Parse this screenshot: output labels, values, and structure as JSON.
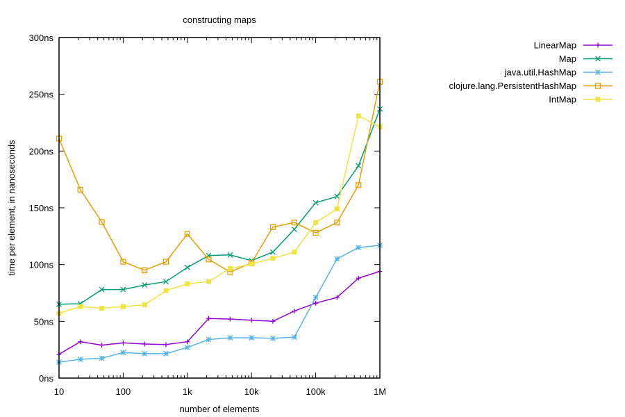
{
  "chart_data": {
    "type": "line",
    "title": "constructing maps",
    "xlabel": "number of elements",
    "ylabel": "time per element, in nanoseconds",
    "xscale": "log",
    "xlim": [
      10,
      1000000
    ],
    "ylim": [
      0,
      300
    ],
    "x_ticks": [
      {
        "value": 10,
        "label": "10"
      },
      {
        "value": 100,
        "label": "100"
      },
      {
        "value": 1000,
        "label": "1k"
      },
      {
        "value": 10000,
        "label": "10k"
      },
      {
        "value": 100000,
        "label": "100k"
      },
      {
        "value": 1000000,
        "label": "1M"
      }
    ],
    "y_ticks": [
      {
        "value": 0,
        "label": "0ns"
      },
      {
        "value": 50,
        "label": "50ns"
      },
      {
        "value": 100,
        "label": "100ns"
      },
      {
        "value": 150,
        "label": "150ns"
      },
      {
        "value": 200,
        "label": "200ns"
      },
      {
        "value": 250,
        "label": "250ns"
      },
      {
        "value": 300,
        "label": "300ns"
      }
    ],
    "grid": false,
    "legend_position": "top-right, outside plot",
    "x": [
      10,
      21.5,
      46.4,
      100,
      215,
      464,
      1000,
      2150,
      4640,
      10000,
      21500,
      46400,
      100000,
      215000,
      464000,
      1000000
    ],
    "series": [
      {
        "name": "LinearMap",
        "color": "#9400d3",
        "marker": "plus",
        "values": [
          21,
          32,
          29,
          31,
          30,
          29.5,
          32,
          52.5,
          52,
          51,
          50,
          59,
          66,
          71,
          88,
          94
        ]
      },
      {
        "name": "Map",
        "color": "#009e73",
        "marker": "cross",
        "values": [
          65,
          65.5,
          78,
          78,
          82,
          85,
          97.5,
          108,
          108.5,
          103.5,
          111,
          131,
          154.5,
          160,
          187,
          237
        ]
      },
      {
        "name": "java.util.HashMap",
        "color": "#56b4e9",
        "marker": "star",
        "values": [
          14,
          16.5,
          17.5,
          22.5,
          21.5,
          21.5,
          27,
          34,
          35.5,
          35.5,
          35,
          36,
          71,
          105,
          115,
          117
        ]
      },
      {
        "name": "clojure.lang.PersistentHashMap",
        "color": "#e69f00",
        "marker": "box",
        "values": [
          211,
          166,
          137.5,
          102.5,
          95,
          102.5,
          127,
          104.5,
          93.5,
          101.5,
          133,
          137,
          128,
          137,
          170,
          261
        ]
      },
      {
        "name": "IntMap",
        "color": "#f0e442",
        "marker": "filled-box",
        "values": [
          57,
          63,
          61.5,
          63,
          64.5,
          77,
          83,
          85,
          96.5,
          100.5,
          105.5,
          111,
          137,
          149,
          231,
          221.5
        ]
      }
    ]
  }
}
